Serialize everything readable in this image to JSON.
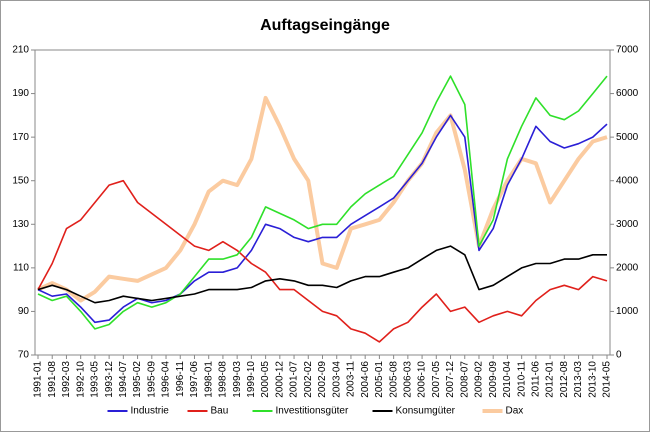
{
  "chart_data": {
    "type": "line",
    "title": "Auftagseingänge",
    "categories": [
      "1991-01",
      "1991-08",
      "1992-03",
      "1992-10",
      "1993-05",
      "1993-12",
      "1994-07",
      "1995-02",
      "1995-09",
      "1996-04",
      "1996-11",
      "1997-06",
      "1998-01",
      "1998-08",
      "1999-03",
      "1999-10",
      "2000-05",
      "2000-12",
      "2001-07",
      "2002-02",
      "2002-09",
      "2003-04",
      "2003-11",
      "2004-06",
      "2005-01",
      "2005-08",
      "2006-03",
      "2006-10",
      "2007-05",
      "2007-12",
      "2008-07",
      "2009-02",
      "2009-09",
      "2010-04",
      "2010-11",
      "2011-06",
      "2012-01",
      "2012-08",
      "2013-03",
      "2013-10",
      "2014-05"
    ],
    "ylim": [
      70,
      210
    ],
    "yticks": [
      70,
      90,
      110,
      130,
      150,
      170,
      190,
      210
    ],
    "y2lim": [
      0,
      7000
    ],
    "y2ticks": [
      0,
      1000,
      2000,
      3000,
      4000,
      5000,
      6000,
      7000
    ],
    "legend": "bottom",
    "series": [
      {
        "name": "Industrie",
        "color": "#2a1fd6",
        "values": [
          100,
          97,
          98,
          92,
          85,
          86,
          92,
          96,
          94,
          95,
          98,
          104,
          108,
          108,
          110,
          118,
          130,
          128,
          124,
          122,
          124,
          124,
          130,
          134,
          138,
          142,
          150,
          158,
          170,
          180,
          170,
          118,
          128,
          148,
          160,
          175,
          168,
          165,
          167,
          170,
          176
        ]
      },
      {
        "name": "Bau",
        "color": "#e0201b",
        "values": [
          100,
          112,
          128,
          132,
          140,
          148,
          150,
          140,
          135,
          130,
          125,
          120,
          118,
          122,
          118,
          112,
          108,
          100,
          100,
          95,
          90,
          88,
          82,
          80,
          76,
          82,
          85,
          92,
          98,
          90,
          92,
          85,
          88,
          90,
          88,
          95,
          100,
          102,
          100,
          106,
          104
        ]
      },
      {
        "name": "Investitionsgüter",
        "color": "#2fe02a",
        "values": [
          98,
          95,
          97,
          90,
          82,
          84,
          90,
          94,
          92,
          94,
          98,
          106,
          114,
          114,
          116,
          124,
          138,
          135,
          132,
          128,
          130,
          130,
          138,
          144,
          148,
          152,
          162,
          172,
          186,
          198,
          185,
          120,
          132,
          160,
          175,
          188,
          180,
          178,
          182,
          190,
          198
        ]
      },
      {
        "name": "Konsumgüter",
        "color": "#000000",
        "values": [
          100,
          102,
          100,
          97,
          94,
          95,
          97,
          96,
          95,
          96,
          97,
          98,
          100,
          100,
          100,
          101,
          104,
          105,
          104,
          102,
          102,
          101,
          104,
          106,
          106,
          108,
          110,
          114,
          118,
          120,
          116,
          100,
          102,
          106,
          110,
          112,
          112,
          114,
          114,
          116,
          116
        ]
      },
      {
        "name": "Dax",
        "color": "#fbcba0",
        "axis": "y2",
        "values": [
          1500,
          1650,
          1500,
          1250,
          1450,
          1800,
          1750,
          1700,
          1850,
          2000,
          2400,
          3000,
          3750,
          4000,
          3900,
          4500,
          5900,
          5250,
          4500,
          4000,
          2100,
          2000,
          2900,
          3000,
          3100,
          3500,
          4000,
          4400,
          5100,
          5500,
          4250,
          2500,
          3350,
          4000,
          4500,
          4400,
          3500,
          4000,
          4500,
          4900,
          5000
        ]
      }
    ]
  }
}
